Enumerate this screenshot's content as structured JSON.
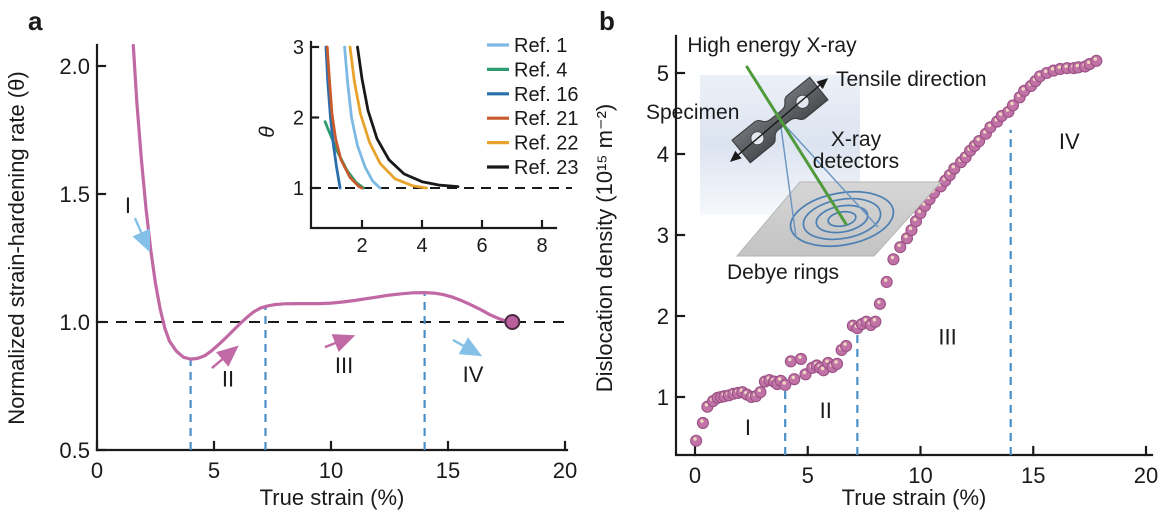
{
  "figure": {
    "panels": {
      "a": {
        "panel_label": "a",
        "x_axis_title": "True strain (%)",
        "y_axis_title": "Normalized strain-hardening rate (θ)",
        "inset": {
          "y_axis_title": "θ",
          "legend": [
            {
              "label": "Ref. 1",
              "color": "#7cb9e3"
            },
            {
              "label": "Ref. 4",
              "color": "#2e9c70"
            },
            {
              "label": "Ref. 16",
              "color": "#2a6fad"
            },
            {
              "label": "Ref. 21",
              "color": "#c75b2e"
            },
            {
              "label": "Ref. 22",
              "color": "#e8a32c"
            },
            {
              "label": "Ref. 23",
              "color": "#191919"
            }
          ]
        }
      },
      "b": {
        "panel_label": "b",
        "x_axis_title": "True strain (%)",
        "y_axis_title": "Dislocation density (10¹⁵ m⁻²)",
        "schematic": {
          "labels": {
            "xray": "High energy X-ray",
            "tensile": "Tensile direction",
            "specimen": "Specimen",
            "detectors_line1": "X-ray",
            "detectors_line2": "detectors",
            "debye": "Debye rings"
          }
        }
      }
    },
    "colors": {
      "curve_pink": "#c169a5",
      "marker_pink": "#c172a6",
      "marker_edge": "#9a5184",
      "marker_highlight": "#f5e3c4",
      "endpoint_fill": "#b85f9c",
      "endpoint_edge": "#4a2a40",
      "stage_dash_blue": "#4b8fc6",
      "arrow_blue": "#85c0e8",
      "arrow_pink": "#c169a5",
      "reference_black": "#1a1a1a",
      "beam_green": "#4f9b3c",
      "ring_blue": "#4c80b2"
    }
  },
  "chart_data": [
    {
      "id": "panel_a_main",
      "type": "line",
      "xlabel": "True strain (%)",
      "ylabel": "Normalized strain-hardening rate (θ)",
      "xlim": [
        0,
        20.3
      ],
      "ylim": [
        0.5,
        2.08
      ],
      "grid": false,
      "x_ticks": [
        {
          "value": 0,
          "label": "0"
        },
        {
          "value": 5,
          "label": "5"
        },
        {
          "value": 10,
          "label": "10"
        },
        {
          "value": 15,
          "label": "15"
        },
        {
          "value": 20,
          "label": "20"
        }
      ],
      "y_ticks": [
        {
          "value": 0.5,
          "label": "0.5"
        },
        {
          "value": 1.0,
          "label": "1.0"
        },
        {
          "value": 1.5,
          "label": "1.5"
        },
        {
          "value": 2.0,
          "label": "2.0"
        }
      ],
      "reference_line_y": 1.0,
      "stage_boundaries": [
        {
          "x": 4.0,
          "top": 0.855
        },
        {
          "x": 7.2,
          "top": 1.06
        },
        {
          "x": 14.0,
          "top": 1.112
        }
      ],
      "series": [
        {
          "name": "normalized strain-hardening rate",
          "color": "#c169a5",
          "points": [
            [
              1.55,
              2.08
            ],
            [
              1.7,
              1.86
            ],
            [
              1.9,
              1.63
            ],
            [
              2.1,
              1.44
            ],
            [
              2.3,
              1.28
            ],
            [
              2.5,
              1.15
            ],
            [
              2.7,
              1.05
            ],
            [
              2.9,
              0.975
            ],
            [
              3.1,
              0.925
            ],
            [
              3.4,
              0.885
            ],
            [
              3.7,
              0.862
            ],
            [
              4.0,
              0.855
            ],
            [
              4.3,
              0.858
            ],
            [
              4.6,
              0.868
            ],
            [
              4.9,
              0.888
            ],
            [
              5.2,
              0.912
            ],
            [
              5.5,
              0.938
            ],
            [
              5.8,
              0.965
            ],
            [
              6.1,
              0.992
            ],
            [
              6.4,
              1.018
            ],
            [
              6.7,
              1.04
            ],
            [
              7.0,
              1.055
            ],
            [
              7.3,
              1.063
            ],
            [
              7.6,
              1.068
            ],
            [
              8.0,
              1.071
            ],
            [
              8.5,
              1.072
            ],
            [
              9.0,
              1.072
            ],
            [
              9.5,
              1.072
            ],
            [
              10.0,
              1.074
            ],
            [
              10.5,
              1.078
            ],
            [
              11.0,
              1.084
            ],
            [
              11.5,
              1.091
            ],
            [
              12.0,
              1.098
            ],
            [
              12.5,
              1.105
            ],
            [
              13.0,
              1.11
            ],
            [
              13.5,
              1.114
            ],
            [
              14.0,
              1.115
            ],
            [
              14.4,
              1.113
            ],
            [
              14.8,
              1.107
            ],
            [
              15.2,
              1.097
            ],
            [
              15.6,
              1.083
            ],
            [
              16.0,
              1.066
            ],
            [
              16.4,
              1.048
            ],
            [
              16.8,
              1.028
            ],
            [
              17.2,
              1.012
            ],
            [
              17.5,
              1.004
            ],
            [
              17.75,
              1.0
            ]
          ]
        }
      ],
      "endpoint": [
        17.75,
        1.0
      ],
      "stages": [
        {
          "numeral": "I",
          "label_xy": [
            1.32,
            1.457
          ],
          "arrow_from": [
            1.62,
            1.406
          ],
          "arrow_to": [
            2.22,
            1.281
          ],
          "arrow_color": "#85c0e8"
        },
        {
          "numeral": "II",
          "label_xy": [
            5.6,
            0.78
          ],
          "arrow_from": [
            4.91,
            0.82
          ],
          "arrow_to": [
            5.98,
            0.902
          ],
          "arrow_color": "#c169a5"
        },
        {
          "numeral": "III",
          "label_xy": [
            10.56,
            0.832
          ],
          "arrow_from": [
            9.74,
            0.902
          ],
          "arrow_to": [
            10.94,
            0.945
          ],
          "arrow_color": "#c169a5"
        },
        {
          "numeral": "IV",
          "label_xy": [
            16.07,
            0.797
          ],
          "arrow_from": [
            15.21,
            0.93
          ],
          "arrow_to": [
            16.37,
            0.871
          ],
          "arrow_color": "#85c0e8"
        }
      ]
    },
    {
      "id": "panel_a_inset",
      "type": "line",
      "xlabel": "",
      "ylabel": "θ",
      "xlim": [
        0.3,
        8.5
      ],
      "ylim": [
        0.43,
        3.0
      ],
      "grid": false,
      "x_ticks": [
        {
          "value": 2,
          "label": "2"
        },
        {
          "value": 4,
          "label": "4"
        },
        {
          "value": 6,
          "label": "6"
        },
        {
          "value": 8,
          "label": "8"
        }
      ],
      "y_ticks": [
        {
          "value": 1,
          "label": "1"
        },
        {
          "value": 2,
          "label": "2"
        },
        {
          "value": 3,
          "label": "3"
        }
      ],
      "reference_line_y": 1.0,
      "series": [
        {
          "name": "Ref. 1",
          "color": "#7cb9e3",
          "points": [
            [
              1.42,
              3.0
            ],
            [
              1.52,
              2.5
            ],
            [
              1.65,
              2.0
            ],
            [
              1.85,
              1.6
            ],
            [
              2.1,
              1.3
            ],
            [
              2.35,
              1.1
            ],
            [
              2.6,
              1.0
            ]
          ]
        },
        {
          "name": "Ref. 4",
          "color": "#2e9c70",
          "points": [
            [
              0.77,
              1.94
            ],
            [
              0.95,
              1.75
            ],
            [
              1.2,
              1.5
            ],
            [
              1.5,
              1.25
            ],
            [
              1.8,
              1.08
            ],
            [
              2.05,
              1.0
            ]
          ]
        },
        {
          "name": "Ref. 16",
          "color": "#2a6fad",
          "points": [
            [
              0.8,
              3.0
            ],
            [
              0.86,
              2.5
            ],
            [
              0.95,
              2.0
            ],
            [
              1.05,
              1.6
            ],
            [
              1.15,
              1.3
            ],
            [
              1.27,
              1.0
            ]
          ]
        },
        {
          "name": "Ref. 21",
          "color": "#c75b2e",
          "points": [
            [
              0.84,
              3.0
            ],
            [
              0.92,
              2.5
            ],
            [
              1.0,
              2.05
            ],
            [
              1.12,
              1.7
            ],
            [
              1.3,
              1.4
            ],
            [
              1.6,
              1.15
            ],
            [
              1.9,
              1.02
            ],
            [
              2.0,
              1.0
            ]
          ]
        },
        {
          "name": "Ref. 22",
          "color": "#e8a32c",
          "points": [
            [
              1.6,
              3.0
            ],
            [
              1.75,
              2.5
            ],
            [
              1.95,
              2.05
            ],
            [
              2.25,
              1.65
            ],
            [
              2.6,
              1.35
            ],
            [
              3.1,
              1.13
            ],
            [
              3.7,
              1.03
            ],
            [
              4.15,
              1.0
            ]
          ]
        },
        {
          "name": "Ref. 23",
          "color": "#191919",
          "points": [
            [
              1.85,
              3.0
            ],
            [
              2.0,
              2.55
            ],
            [
              2.2,
              2.1
            ],
            [
              2.5,
              1.7
            ],
            [
              2.9,
              1.4
            ],
            [
              3.4,
              1.2
            ],
            [
              4.0,
              1.09
            ],
            [
              4.6,
              1.04
            ],
            [
              5.2,
              1.02
            ]
          ]
        }
      ],
      "legend_position": "right"
    },
    {
      "id": "panel_b",
      "type": "scatter",
      "xlabel": "True strain (%)",
      "ylabel": "Dislocation density (10¹⁵ m⁻²)",
      "xlim": [
        0,
        20.3
      ],
      "ylim": [
        0.28,
        5.45
      ],
      "grid": false,
      "x_ticks": [
        {
          "value": 0,
          "label": "0"
        },
        {
          "value": 5,
          "label": "5"
        },
        {
          "value": 10,
          "label": "10"
        },
        {
          "value": 15,
          "label": "15"
        },
        {
          "value": 20,
          "label": "20"
        }
      ],
      "y_ticks": [
        {
          "value": 1,
          "label": "1"
        },
        {
          "value": 2,
          "label": "2"
        },
        {
          "value": 3,
          "label": "3"
        },
        {
          "value": 4,
          "label": "4"
        },
        {
          "value": 5,
          "label": "5"
        }
      ],
      "stage_boundaries": [
        {
          "x": 4.0,
          "top": 1.28
        },
        {
          "x": 7.2,
          "top": 1.8
        },
        {
          "x": 14.0,
          "top": 4.3
        }
      ],
      "marker_color": "#c172a6",
      "points": [
        [
          0.05,
          0.46
        ],
        [
          0.35,
          0.68
        ],
        [
          0.55,
          0.88
        ],
        [
          0.8,
          0.95
        ],
        [
          1.0,
          0.99
        ],
        [
          1.15,
          1.0
        ],
        [
          1.3,
          1.01
        ],
        [
          1.5,
          1.02
        ],
        [
          1.7,
          1.04
        ],
        [
          1.9,
          1.05
        ],
        [
          2.1,
          1.06
        ],
        [
          2.3,
          1.03
        ],
        [
          2.5,
          1.0
        ],
        [
          2.7,
          1.01
        ],
        [
          2.9,
          1.06
        ],
        [
          3.1,
          1.19
        ],
        [
          3.3,
          1.21
        ],
        [
          3.5,
          1.19
        ],
        [
          3.65,
          1.16
        ],
        [
          3.8,
          1.2
        ],
        [
          4.0,
          1.15
        ],
        [
          4.25,
          1.44
        ],
        [
          4.4,
          1.22
        ],
        [
          4.7,
          1.47
        ],
        [
          4.9,
          1.28
        ],
        [
          5.2,
          1.36
        ],
        [
          5.4,
          1.39
        ],
        [
          5.55,
          1.36
        ],
        [
          5.7,
          1.33
        ],
        [
          5.9,
          1.42
        ],
        [
          6.1,
          1.37
        ],
        [
          6.3,
          1.41
        ],
        [
          6.5,
          1.58
        ],
        [
          6.7,
          1.63
        ],
        [
          7.0,
          1.88
        ],
        [
          7.2,
          1.85
        ],
        [
          7.4,
          1.9
        ],
        [
          7.6,
          1.93
        ],
        [
          7.8,
          1.89
        ],
        [
          8.0,
          1.93
        ],
        [
          8.2,
          2.15
        ],
        [
          8.5,
          2.42
        ],
        [
          8.8,
          2.7
        ],
        [
          9.1,
          2.85
        ],
        [
          9.4,
          2.96
        ],
        [
          9.6,
          3.06
        ],
        [
          9.8,
          3.17
        ],
        [
          10.0,
          3.27
        ],
        [
          10.2,
          3.36
        ],
        [
          10.4,
          3.44
        ],
        [
          10.6,
          3.52
        ],
        [
          10.9,
          3.6
        ],
        [
          11.1,
          3.67
        ],
        [
          11.3,
          3.74
        ],
        [
          11.5,
          3.82
        ],
        [
          11.8,
          3.9
        ],
        [
          12.0,
          3.96
        ],
        [
          12.2,
          4.04
        ],
        [
          12.4,
          4.1
        ],
        [
          12.6,
          4.16
        ],
        [
          12.9,
          4.25
        ],
        [
          13.1,
          4.33
        ],
        [
          13.4,
          4.4
        ],
        [
          13.6,
          4.47
        ],
        [
          13.9,
          4.52
        ],
        [
          14.1,
          4.6
        ],
        [
          14.4,
          4.7
        ],
        [
          14.6,
          4.78
        ],
        [
          14.9,
          4.84
        ],
        [
          15.1,
          4.9
        ],
        [
          15.3,
          4.96
        ],
        [
          15.6,
          5.0
        ],
        [
          15.9,
          5.03
        ],
        [
          16.2,
          5.05
        ],
        [
          16.5,
          5.06
        ],
        [
          16.8,
          5.06
        ],
        [
          17.0,
          5.07
        ],
        [
          17.3,
          5.08
        ],
        [
          17.5,
          5.11
        ],
        [
          17.8,
          5.15
        ]
      ],
      "stages": [
        {
          "numeral": "I",
          "label_xy": [
            2.35,
            0.63
          ]
        },
        {
          "numeral": "II",
          "label_xy": [
            5.8,
            0.84
          ]
        },
        {
          "numeral": "III",
          "label_xy": [
            11.2,
            1.75
          ]
        },
        {
          "numeral": "IV",
          "label_xy": [
            16.6,
            4.16
          ]
        }
      ]
    }
  ]
}
